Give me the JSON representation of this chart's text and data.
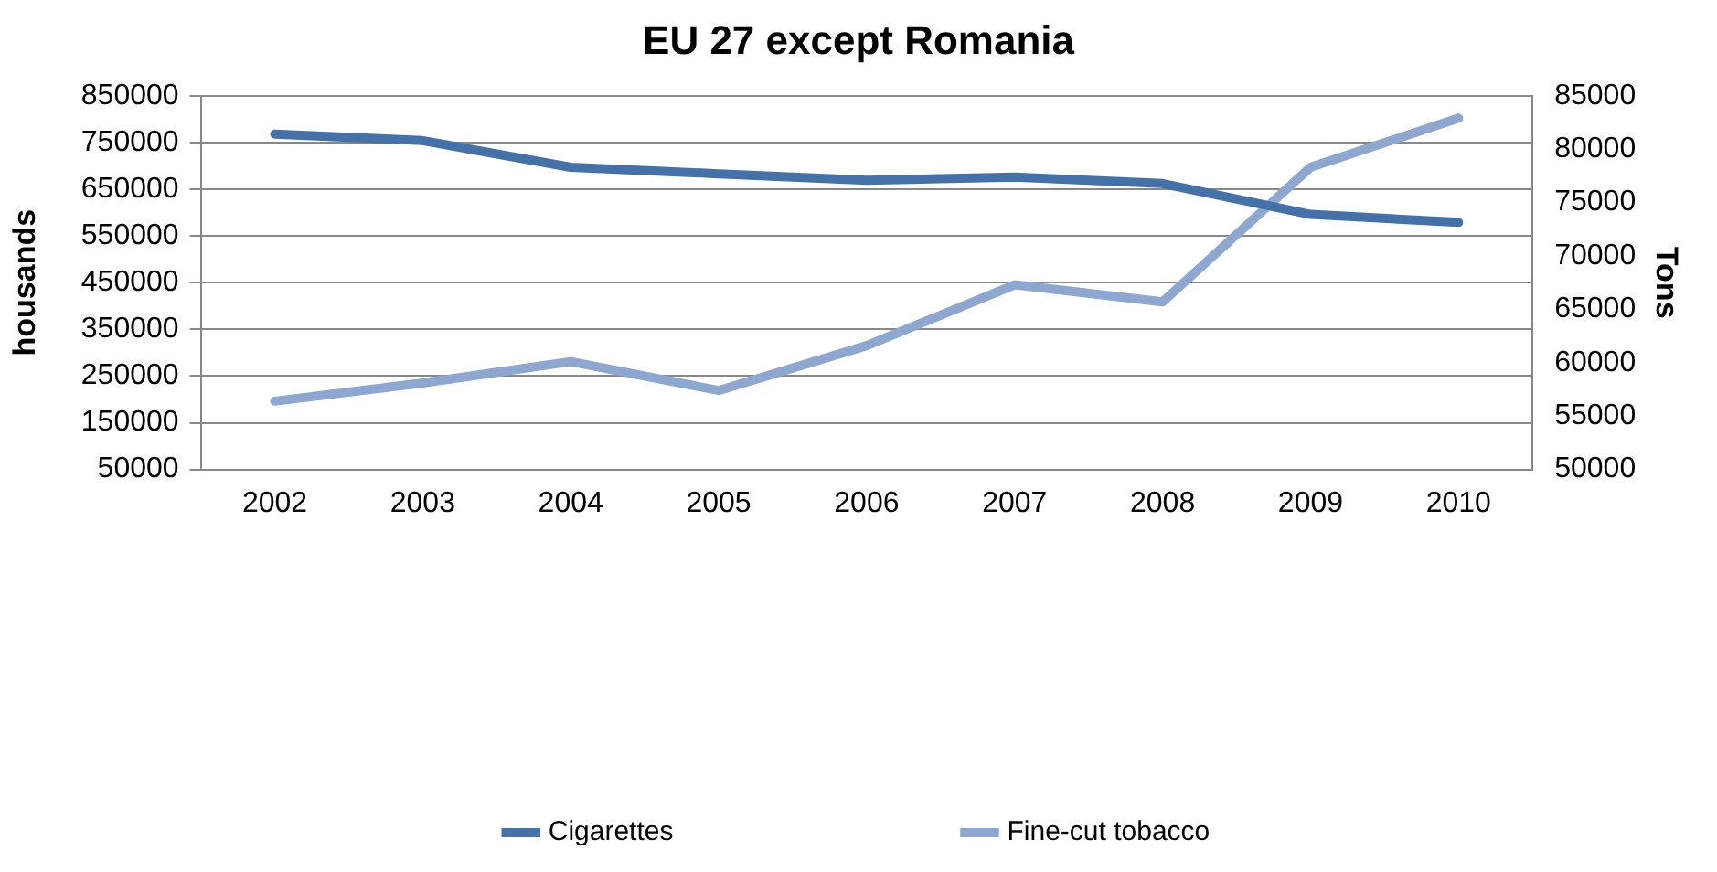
{
  "chart_data": {
    "type": "line",
    "title": "EU 27 except Romania",
    "ylabel": "housands",
    "y2label": "Tons",
    "categories": [
      "2002",
      "2003",
      "2004",
      "2005",
      "2006",
      "2007",
      "2008",
      "2009",
      "2010"
    ],
    "series": [
      {
        "name": "Cigarettes",
        "color": "#4472a8",
        "values": [
          768000,
          754000,
          697000,
          683000,
          669000,
          676000,
          662000,
          596000,
          579000
        ]
      },
      {
        "name": "Fine-cut tobacco",
        "color": "#8ea7d0",
        "axis": "y2",
        "values": [
          56400,
          58100,
          60100,
          57400,
          61600,
          67300,
          65700,
          78300,
          82900
        ]
      }
    ],
    "ylim": [
      50000,
      850000
    ],
    "yticks": [
      50000,
      150000,
      250000,
      350000,
      450000,
      550000,
      650000,
      750000,
      850000
    ],
    "y2lim": [
      50000,
      85000
    ],
    "y2ticks": [
      50000,
      55000,
      60000,
      65000,
      70000,
      75000,
      80000,
      85000
    ],
    "grid": "y",
    "legend": "bottom",
    "marker": "none",
    "line_style": "solid"
  }
}
